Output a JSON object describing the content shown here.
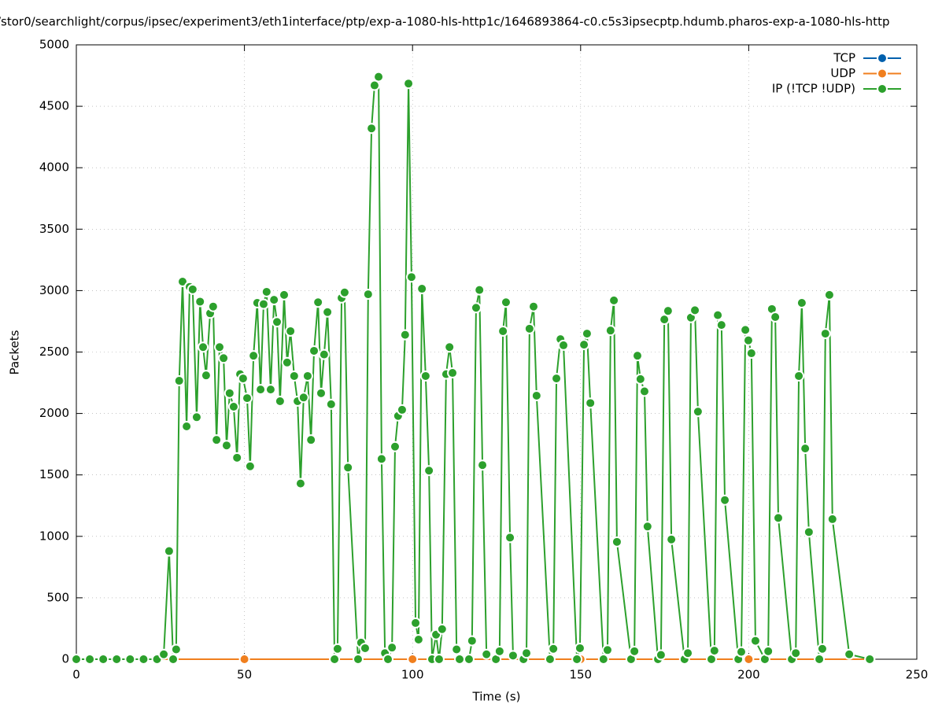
{
  "chart_data": {
    "type": "line",
    "title": "/stor0/searchlight/corpus/ipsec/experiment3/eth1interface/ptp/exp-a-1080-hls-http1c/1646893864-c0.c5s3ipsecptp.hdumb.pharos-exp-a-1080-hls-http",
    "xlabel": "Time (s)",
    "ylabel": "Packets",
    "xlim": [
      0,
      250
    ],
    "ylim": [
      0,
      5000
    ],
    "xticks": [
      0,
      50,
      100,
      150,
      200,
      250
    ],
    "yticks": [
      0,
      500,
      1000,
      1500,
      2000,
      2500,
      3000,
      3500,
      4000,
      4500,
      5000
    ],
    "grid": true,
    "legend": "top-right",
    "series": [
      {
        "name": "TCP",
        "color": "#0060ad",
        "x": [
          0,
          50,
          100,
          150,
          200,
          236
        ],
        "values": [
          0,
          0,
          0,
          0,
          0,
          0
        ]
      },
      {
        "name": "UDP",
        "color": "#f07f1e",
        "x": [
          0,
          50,
          100,
          150,
          200,
          236
        ],
        "values": [
          0,
          0,
          0,
          0,
          0,
          0
        ]
      },
      {
        "name": "IP (!TCP  !UDP)",
        "color": "#2ca02c",
        "x": [
          0,
          4,
          8,
          12,
          16,
          20,
          24,
          26,
          27.6,
          28.8,
          29.7,
          30.6,
          31.6,
          32.8,
          33.7,
          34.6,
          35.8,
          36.8,
          37.7,
          38.6,
          39.8,
          40.7,
          41.7,
          42.6,
          43.8,
          44.7,
          45.6,
          46.8,
          47.8,
          48.7,
          49.6,
          50.8,
          51.7,
          52.7,
          53.8,
          54.8,
          55.7,
          56.6,
          57.8,
          58.8,
          59.7,
          60.6,
          61.8,
          62.7,
          63.7,
          64.8,
          65.8,
          66.7,
          67.6,
          68.8,
          69.8,
          70.7,
          71.9,
          72.8,
          73.7,
          74.7,
          75.8,
          76.8,
          77.7,
          78.9,
          79.8,
          80.8,
          83.8,
          84.7,
          85.9,
          86.8,
          87.8,
          88.7,
          89.9,
          90.8,
          91.8,
          92.7,
          93.9,
          94.8,
          95.7,
          96.9,
          97.8,
          98.8,
          99.7,
          100.9,
          101.8,
          102.8,
          103.9,
          104.9,
          105.8,
          107.0,
          107.9,
          108.8,
          110.0,
          111.0,
          111.9,
          113.1,
          114.0,
          116.8,
          117.7,
          118.9,
          119.9,
          120.8,
          122.0,
          124.8,
          125.9,
          126.9,
          127.8,
          129.0,
          129.9,
          133.0,
          133.9,
          134.8,
          136.0,
          136.9,
          140.9,
          141.9,
          142.8,
          144.0,
          144.9,
          148.9,
          149.8,
          151.0,
          151.9,
          152.9,
          156.8,
          158.0,
          158.9,
          159.9,
          160.8,
          165.0,
          166.0,
          166.9,
          167.8,
          169.0,
          169.9,
          173.0,
          173.9,
          174.9,
          176.0,
          177.0,
          180.9,
          181.9,
          182.8,
          184.0,
          184.9,
          188.9,
          189.8,
          190.8,
          191.9,
          192.9,
          196.9,
          197.8,
          199.0,
          199.9,
          200.8,
          202.0,
          204.8,
          205.8,
          206.9,
          207.9,
          208.8,
          212.8,
          214.0,
          214.9,
          215.8,
          216.8,
          217.9,
          221.0,
          221.9,
          222.8,
          224.0,
          224.9,
          229.9,
          236.0
        ],
        "values": [
          0,
          0,
          0,
          0,
          0,
          0,
          0,
          40,
          880,
          0,
          80,
          2266,
          3073,
          1895,
          3030,
          3010,
          1970,
          2910,
          2540,
          2310,
          2815,
          2870,
          1785,
          2540,
          2450,
          1740,
          2165,
          2055,
          1640,
          2320,
          2285,
          2125,
          1570,
          2470,
          2900,
          2195,
          2890,
          2990,
          2195,
          2925,
          2745,
          2100,
          2965,
          2415,
          2670,
          2305,
          2100,
          1430,
          2130,
          2305,
          1785,
          2510,
          2905,
          2165,
          2480,
          2825,
          2075,
          0,
          85,
          2940,
          2985,
          1560,
          0,
          135,
          90,
          2970,
          4320,
          4670,
          4740,
          1630,
          50,
          0,
          95,
          1730,
          1980,
          2030,
          2640,
          4685,
          3110,
          295,
          160,
          3015,
          2305,
          1535,
          0,
          200,
          0,
          245,
          2320,
          2540,
          2330,
          80,
          0,
          0,
          150,
          2860,
          3005,
          1580,
          40,
          0,
          65,
          2670,
          2905,
          990,
          30,
          0,
          50,
          2690,
          2870,
          2145,
          0,
          85,
          2285,
          2605,
          2555,
          0,
          90,
          2560,
          2650,
          2085,
          0,
          75,
          2675,
          2920,
          955,
          0,
          65,
          2470,
          2280,
          2180,
          1080,
          0,
          35,
          2765,
          2835,
          975,
          0,
          50,
          2780,
          2840,
          2015,
          0,
          70,
          2800,
          2720,
          1295,
          0,
          60,
          2680,
          2595,
          2490,
          150,
          0,
          65,
          2850,
          2785,
          1150,
          0,
          50,
          2305,
          2900,
          1715,
          1035,
          0,
          85,
          2650,
          2965,
          1140,
          40,
          0
        ]
      }
    ]
  }
}
